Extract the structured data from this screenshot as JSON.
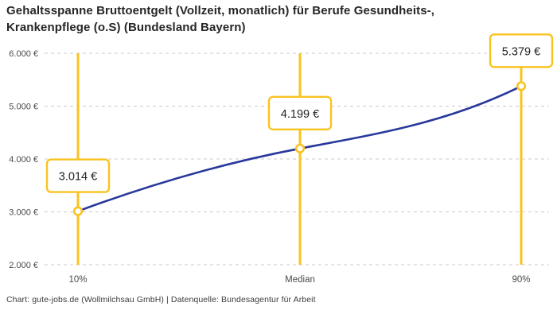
{
  "header": {
    "title": "Gehaltsspanne Bruttoentgelt (Vollzeit, monatlich) für Berufe Gesundheits-, Krankenpflege (o.S) (Bundesland Bayern)"
  },
  "footer": {
    "text": "Chart: gute-jobs.de (Wollmilchsau GmbH) | Datenquelle: Bundesagentur für Arbeit"
  },
  "colors": {
    "line": "#28389B",
    "accent": "#F9C31F",
    "grid": "#CBCBCB",
    "marker_fill": "#FFFFFF",
    "label_box_bg": "#FFFFFF",
    "label_text": "#222222",
    "axis_text": "#494949",
    "title_text": "#262626",
    "footer_text": "#3C3C3C"
  },
  "chart_data": {
    "type": "line",
    "title": "Gehaltsspanne Bruttoentgelt (Vollzeit, monatlich) für Berufe Gesundheits-, Krankenpflege (o.S) (Bundesland Bayern)",
    "xlabel": "",
    "ylabel": "",
    "categories": [
      "10%",
      "Median",
      "90%"
    ],
    "values": [
      3014,
      4199,
      5379
    ],
    "value_labels": [
      "3.014 €",
      "4.199 €",
      "5.379 €"
    ],
    "ylim": [
      2000,
      6000
    ],
    "yticks": [
      6000,
      5000,
      4000,
      3000,
      2000
    ],
    "ytick_labels": [
      "6.000 €",
      "5.000 €",
      "4.000 €",
      "3.000 €",
      "2.000 €"
    ],
    "grid": "horizontal-dashed",
    "legend": "none",
    "annotations": "vertical accent rule, open circle marker and boxed value label at each percentile",
    "source": "Datenquelle: Bundesagentur für Arbeit"
  }
}
